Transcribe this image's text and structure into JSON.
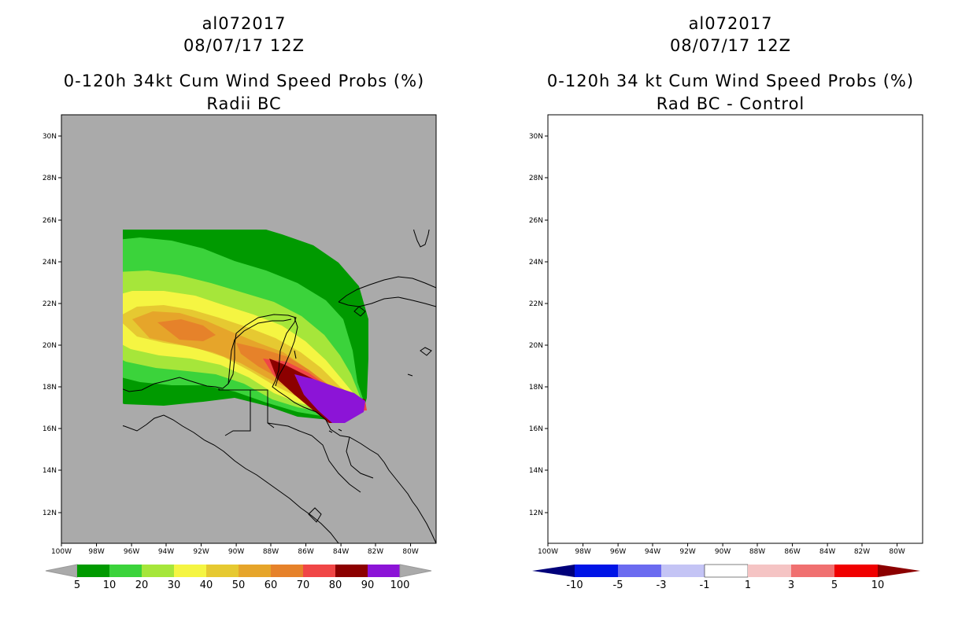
{
  "left_panel": {
    "storm_id": "al072017",
    "date": "08/07/17 12Z",
    "title": "0-120h 34kt Cum Wind Speed Probs (%)",
    "subtitle": "Radii BC",
    "colorbar_labels": [
      "5",
      "10",
      "20",
      "30",
      "40",
      "50",
      "60",
      "70",
      "80",
      "90",
      "100"
    ],
    "colorbar_colors": [
      "#009a00",
      "#3bd33b",
      "#a6e63a",
      "#f5f542",
      "#e6c931",
      "#e6a52a",
      "#e6822a",
      "#f04646",
      "#8c0000",
      "#8c14d7"
    ],
    "background_color": "#aaaaaa"
  },
  "right_panel": {
    "storm_id": "al072017",
    "date": "08/07/17 12Z",
    "title": "0-120h 34 kt Cum Wind Speed Probs (%)",
    "subtitle": "Rad BC - Control",
    "colorbar_labels": [
      "-10",
      "-5",
      "-3",
      "-1",
      "1",
      "3",
      "5",
      "10"
    ],
    "colorbar_colors": [
      "#00007a",
      "#0014e6",
      "#6b6bf0",
      "#c4c4f5",
      "#ffffff",
      "#f5c4c4",
      "#f07070",
      "#f00000",
      "#8c0000"
    ],
    "background_color": "#ffffff"
  },
  "axes": {
    "lon_labels": [
      "100W",
      "98W",
      "96W",
      "94W",
      "92W",
      "90W",
      "88W",
      "86W",
      "84W",
      "82W",
      "80W"
    ],
    "lat_labels": [
      "30N",
      "28N",
      "26N",
      "24N",
      "22N",
      "20N",
      "18N",
      "16N",
      "14N",
      "12N"
    ]
  }
}
